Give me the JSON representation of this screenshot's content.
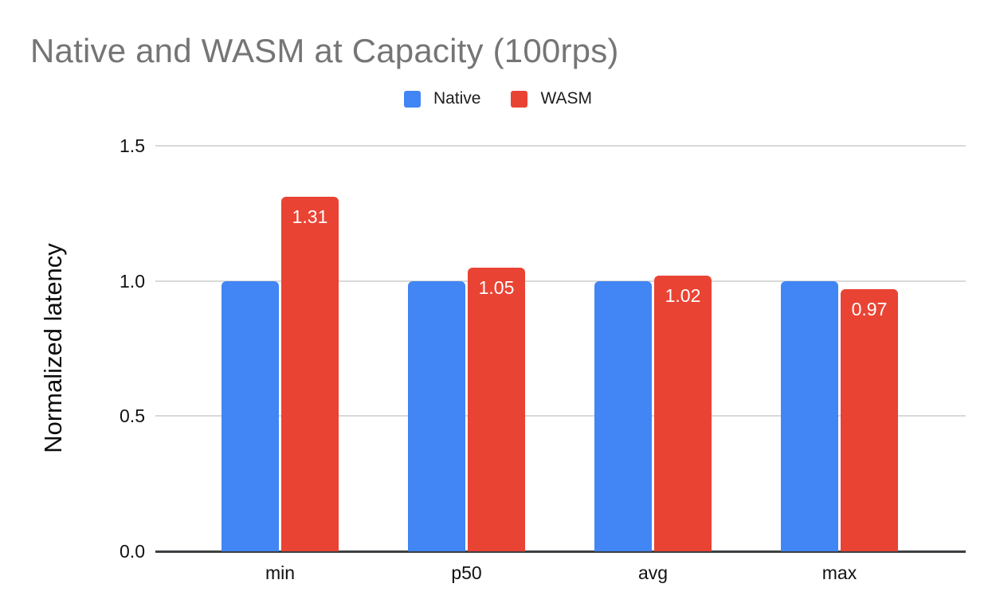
{
  "chart_data": {
    "type": "bar",
    "title": "Native and WASM at Capacity (100rps)",
    "categories": [
      "min",
      "p50",
      "avg",
      "max"
    ],
    "series": [
      {
        "name": "Native",
        "color": "#4285F4",
        "values": [
          1.0,
          1.0,
          1.0,
          1.0
        ],
        "labels_shown": false
      },
      {
        "name": "WASM",
        "color": "#E94334",
        "values": [
          1.31,
          1.05,
          1.02,
          0.97
        ],
        "labels_shown": true,
        "labels": [
          "1.31",
          "1.05",
          "1.02",
          "0.97"
        ]
      }
    ],
    "xlabel": "",
    "ylabel": "Normalized latency",
    "ylim": [
      0,
      1.5
    ],
    "yticks": [
      "0.0",
      "0.5",
      "1.0",
      "1.5"
    ],
    "grid": true,
    "legend_position": "top-center",
    "data_label_color": "#ffffff"
  },
  "colors": {
    "title_text": "#757575",
    "axis_text": "#111111",
    "gridline": "#d9d9d9",
    "baseline": "#3c4043",
    "background": "#ffffff",
    "native_blue": "#4285F4",
    "wasm_red": "#E94334"
  }
}
